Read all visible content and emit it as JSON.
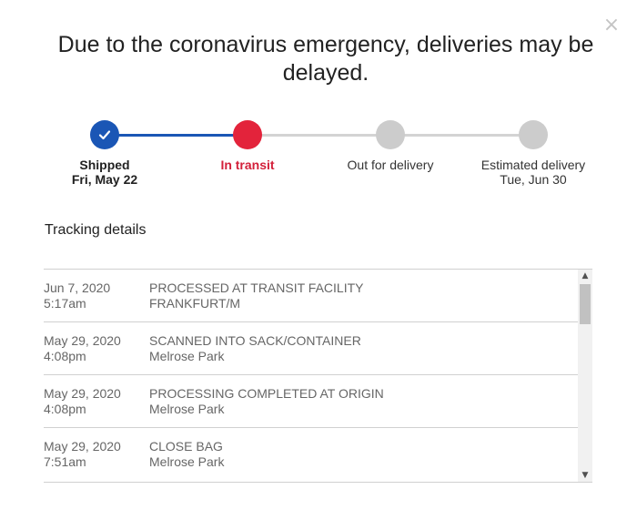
{
  "dialog": {
    "close_label": "×",
    "headline": "Due to the coronavirus emergency, deliveries may be delayed."
  },
  "tracker": {
    "current_step": 2,
    "colors": {
      "completed": "#1a56b5",
      "current": "#e3233b",
      "pending": "#cccccc"
    },
    "steps": [
      {
        "label": "Shipped",
        "date": "Fri, May 22",
        "status": "completed"
      },
      {
        "label": "In transit",
        "date": "",
        "status": "current"
      },
      {
        "label": "Out for delivery",
        "date": "",
        "status": "pending"
      },
      {
        "label": "Estimated delivery",
        "date": "Tue, Jun 30",
        "status": "pending"
      }
    ]
  },
  "tracking_details": {
    "title": "Tracking details",
    "events": [
      {
        "date": "Jun 7, 2020",
        "time": "5:17am",
        "status": "PROCESSED AT TRANSIT FACILITY",
        "location": "FRANKFURT/M"
      },
      {
        "date": "May 29, 2020",
        "time": "4:08pm",
        "status": "SCANNED INTO SACK/CONTAINER",
        "location": "Melrose Park"
      },
      {
        "date": "May 29, 2020",
        "time": "4:08pm",
        "status": "PROCESSING COMPLETED AT ORIGIN",
        "location": "Melrose Park"
      },
      {
        "date": "May 29, 2020",
        "time": "7:51am",
        "status": "CLOSE BAG",
        "location": "Melrose Park"
      }
    ]
  },
  "scrollbar": {
    "up_icon": "chevron-up-icon",
    "down_icon": "chevron-down-icon"
  }
}
